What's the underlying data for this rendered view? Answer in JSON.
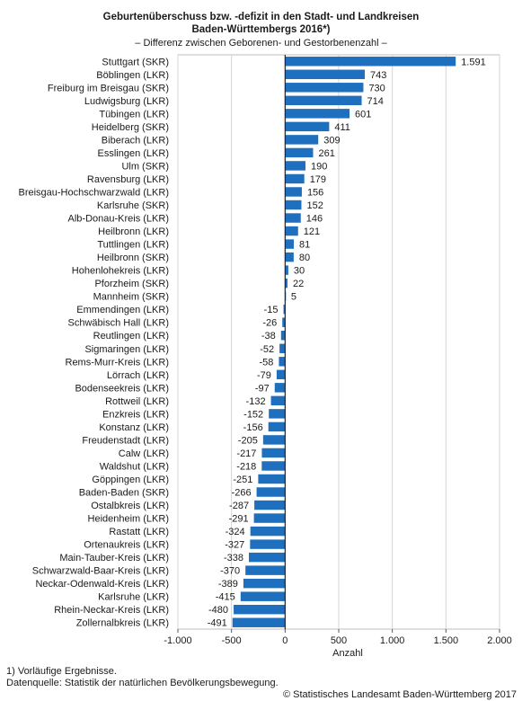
{
  "header": {
    "title_line1": "Geburtenüberschuss bzw. -defizit in den Stadt- und Landkreisen",
    "title_line2": "Baden-Württembergs 2016*)",
    "subtitle": "– Differenz zwischen Geborenen- und Gestorbenenzahl –"
  },
  "footer": {
    "note": "1) Vorläufige Ergebnisse.",
    "source": "Datenquelle: Statistik der natürlichen Bevölkerungsbewegung.",
    "copyright": "© Statistisches Landesamt Baden-Württemberg 2017"
  },
  "chart_data": {
    "type": "bar",
    "orientation": "horizontal",
    "xlabel": "Anzahl",
    "xlim": [
      -1000,
      2000
    ],
    "xticks": [
      -1000,
      -500,
      0,
      500,
      1000,
      1500,
      2000
    ],
    "xtick_labels": [
      "-1.000",
      "-500",
      "0",
      "500",
      "1.000",
      "1.500",
      "2.000"
    ],
    "grid": "vertical",
    "bar_color": "#1f6fbf",
    "categories": [
      "Stuttgart (SKR)",
      "Böblingen (LKR)",
      "Freiburg im Breisgau (SKR)",
      "Ludwigsburg (LKR)",
      "Tübingen (LKR)",
      "Heidelberg (SKR)",
      "Biberach (LKR)",
      "Esslingen (LKR)",
      "Ulm (SKR)",
      "Ravensburg (LKR)",
      "Breisgau-Hochschwarzwald (LKR)",
      "Karlsruhe (SKR)",
      "Alb-Donau-Kreis (LKR)",
      "Heilbronn (LKR)",
      "Tuttlingen (LKR)",
      "Heilbronn (SKR)",
      "Hohenlohekreis (LKR)",
      "Pforzheim (SKR)",
      "Mannheim (SKR)",
      "Emmendingen (LKR)",
      "Schwäbisch Hall (LKR)",
      "Reutlingen (LKR)",
      "Sigmaringen (LKR)",
      "Rems-Murr-Kreis  (LKR)",
      "Lörrach (LKR)",
      "Bodenseekreis (LKR)",
      "Rottweil (LKR)",
      "Enzkreis (LKR)",
      "Konstanz (LKR)",
      "Freudenstadt (LKR)",
      "Calw (LKR)",
      "Waldshut (LKR)",
      "Göppingen (LKR)",
      "Baden-Baden (SKR)",
      "Ostalbkreis (LKR)",
      "Heidenheim (LKR)",
      "Rastatt (LKR)",
      "Ortenaukreis (LKR)",
      "Main-Tauber-Kreis (LKR)",
      "Schwarzwald-Baar-Kreis (LKR)",
      "Neckar-Odenwald-Kreis (LKR)",
      "Karlsruhe (LKR)",
      "Rhein-Neckar-Kreis (LKR)",
      "Zollernalbkreis (LKR)"
    ],
    "values": [
      1591,
      743,
      730,
      714,
      601,
      411,
      309,
      261,
      190,
      179,
      156,
      152,
      146,
      121,
      81,
      80,
      30,
      22,
      5,
      -15,
      -26,
      -38,
      -52,
      -58,
      -79,
      -97,
      -132,
      -152,
      -156,
      -205,
      -217,
      -218,
      -251,
      -266,
      -287,
      -291,
      -324,
      -327,
      -338,
      -370,
      -389,
      -415,
      -480,
      -491
    ],
    "value_labels": [
      "1.591",
      "743",
      "730",
      "714",
      "601",
      "411",
      "309",
      "261",
      "190",
      "179",
      "156",
      "152",
      "146",
      "121",
      "81",
      "80",
      "30",
      "22",
      "5",
      "-15",
      "-26",
      "-38",
      "-52",
      "-58",
      "-79",
      "-97",
      "-132",
      "-152",
      "-156",
      "-205",
      "-217",
      "-218",
      "-251",
      "-266",
      "-287",
      "-291",
      "-324",
      "-327",
      "-338",
      "-370",
      "-389",
      "-415",
      "-480",
      "-491"
    ]
  }
}
